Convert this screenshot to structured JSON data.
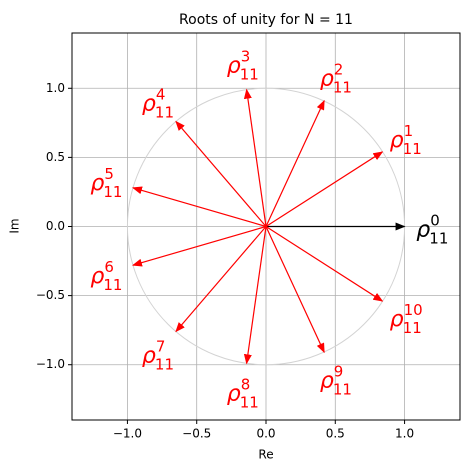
{
  "chart_data": {
    "type": "quiver",
    "title": "Roots of unity for N = 11",
    "xlabel": "Re",
    "ylabel": "Im",
    "xlim": [
      -1.4,
      1.4
    ],
    "ylim": [
      -1.4,
      1.4
    ],
    "xticks": [
      {
        "value": -1.0,
        "label": "−1.0"
      },
      {
        "value": -0.5,
        "label": "−0.5"
      },
      {
        "value": 0.0,
        "label": "0.0"
      },
      {
        "value": 0.5,
        "label": "0.5"
      },
      {
        "value": 1.0,
        "label": "1.0"
      }
    ],
    "yticks": [
      {
        "value": -1.0,
        "label": "−1.0"
      },
      {
        "value": -0.5,
        "label": "−0.5"
      },
      {
        "value": 0.0,
        "label": "0.0"
      },
      {
        "value": 0.5,
        "label": "0.5"
      },
      {
        "value": 1.0,
        "label": "1.0"
      }
    ],
    "grid": true,
    "circle_radius": 1,
    "circle_color": "#d3d3d3",
    "label_base": "ρ",
    "label_subscript": "11",
    "series": [
      {
        "x": [
          1.0,
          0.84,
          0.42,
          -0.14,
          -0.65,
          -0.96,
          -0.96,
          -0.65,
          -0.14,
          0.42,
          0.84
        ],
        "y": [
          0.0,
          0.54,
          0.91,
          0.99,
          0.76,
          0.28,
          -0.28,
          -0.76,
          -0.99,
          -0.91,
          -0.54
        ],
        "labels": [
          "0",
          "1",
          "2",
          "3",
          "4",
          "5",
          "6",
          "7",
          "8",
          "9",
          "10"
        ],
        "colors": [
          "#000000",
          "#ff0000",
          "#ff0000",
          "#ff0000",
          "#ff0000",
          "#ff0000",
          "#ff0000",
          "#ff0000",
          "#ff0000",
          "#ff0000",
          "#ff0000"
        ]
      }
    ]
  }
}
